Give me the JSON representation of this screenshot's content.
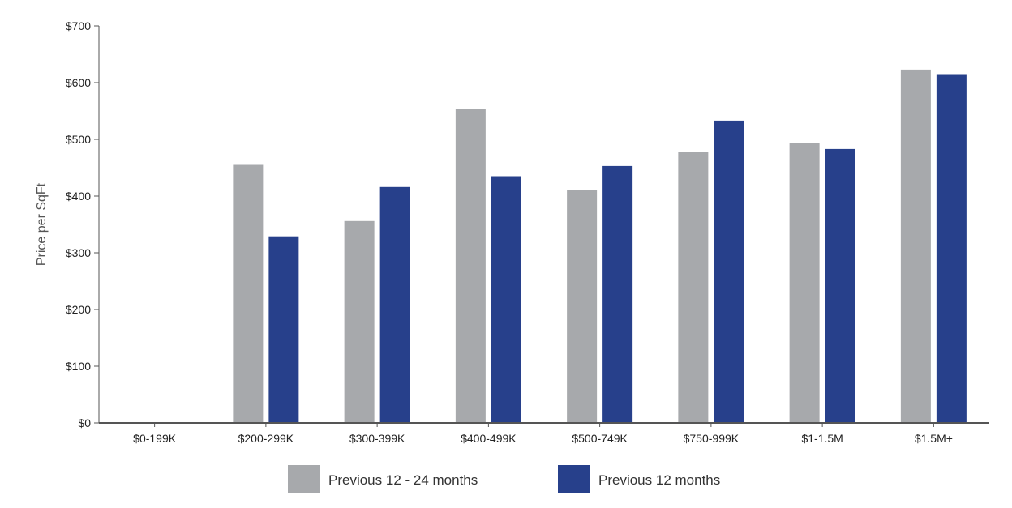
{
  "chart_data": {
    "type": "bar",
    "title": "",
    "xlabel": "",
    "ylabel": "Price per SqFt",
    "ylim": [
      0,
      700
    ],
    "yticks": [
      0,
      100,
      200,
      300,
      400,
      500,
      600,
      700
    ],
    "ytick_labels": [
      "$0",
      "$100",
      "$200",
      "$300",
      "$400",
      "$500",
      "$600",
      "$700"
    ],
    "categories": [
      "$0-199K",
      "$200-299K",
      "$300-399K",
      "$400-499K",
      "$500-749K",
      "$750-999K",
      "$1-1.5M",
      "$1.5M+"
    ],
    "series": [
      {
        "name": "Previous 12 - 24 months",
        "color": "#a7a9ac",
        "values": [
          0,
          455,
          356,
          553,
          411,
          478,
          493,
          623
        ]
      },
      {
        "name": "Previous 12 months",
        "color": "#27408b",
        "values": [
          0,
          329,
          416,
          435,
          453,
          533,
          483,
          615
        ]
      }
    ],
    "grid": false,
    "legend": "bottom"
  }
}
